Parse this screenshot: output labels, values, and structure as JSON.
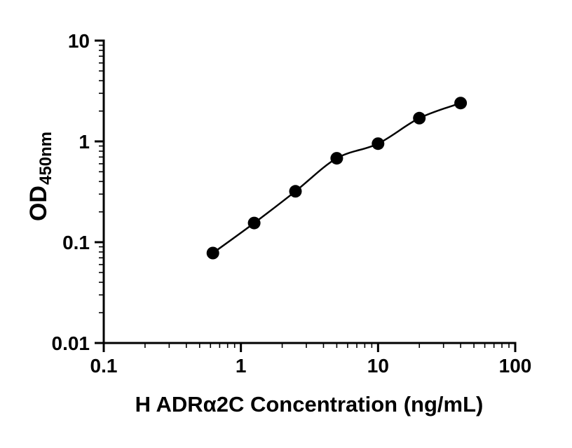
{
  "figure": {
    "background": "#ffffff",
    "axis_color": "#000000"
  },
  "chart_data": {
    "type": "scatter",
    "subtype": "elisa-standard-curve",
    "title": "",
    "xlabel": "H ADRα2C Concentration (ng/mL)",
    "ylabel": "OD450nm",
    "ylabel_main": "OD",
    "ylabel_sub": "450nm",
    "x_scale": "log",
    "y_scale": "log",
    "xlim": [
      0.1,
      100
    ],
    "ylim": [
      0.01,
      10
    ],
    "x_ticks": [
      {
        "value": 0.1,
        "label": "0.1"
      },
      {
        "value": 1,
        "label": "1"
      },
      {
        "value": 10,
        "label": "10"
      },
      {
        "value": 100,
        "label": "100"
      }
    ],
    "y_ticks": [
      {
        "value": 0.01,
        "label": "0.01"
      },
      {
        "value": 0.1,
        "label": "0.1"
      },
      {
        "value": 1,
        "label": "1"
      },
      {
        "value": 10,
        "label": "10"
      }
    ],
    "minor_ticks": true,
    "grid": false,
    "legend_position": "none",
    "series": [
      {
        "x": [
          0.625,
          1.25,
          2.5,
          5,
          10,
          20,
          40
        ],
        "y": [
          0.078,
          0.155,
          0.32,
          0.68,
          0.95,
          1.7,
          2.4
        ],
        "marker": "circle",
        "marker_color": "#000000",
        "line": "smooth",
        "line_color": "#000000"
      }
    ]
  }
}
